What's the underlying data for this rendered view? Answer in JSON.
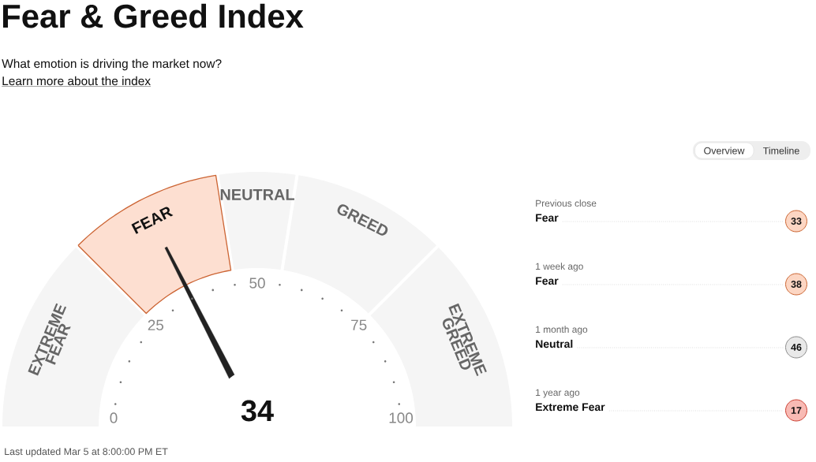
{
  "chart_data": [
    {
      "type": "donut",
      "title": "Fear & Greed Index",
      "subtitle": "What emotion is driving the market now?",
      "categories": [
        "EXTREME FEAR",
        "FEAR",
        "NEUTRAL",
        "GREED",
        "EXTREME GREED"
      ],
      "values": [
        25,
        20,
        10,
        20,
        25
      ],
      "colors": [
        "#f5f5f5",
        "#fddfd1",
        "#f5f5f5",
        "#f5f5f5",
        "#f5f5f5"
      ],
      "needle": "FEAR",
      "annotations": [
        "Learn more about the index",
        "Overview",
        "Timeline",
        "Last updated Mar 5 at 8:00:00 PM ET",
        "34",
        "0",
        "25",
        "50",
        "75",
        "100"
      ]
    },
    {
      "type": "other",
      "categories": [
        "Previous close",
        "1 week ago",
        "1 month ago",
        "1 year ago"
      ],
      "values": [
        33,
        38,
        46,
        17
      ],
      "colors": [
        "#fcd6c3",
        "#fcd6c3",
        "#e9e9e9",
        "#f8bab4"
      ],
      "data_labels": true,
      "annotations": [
        "Fear",
        "Fear",
        "Neutral",
        "Extreme Fear"
      ]
    }
  ]
}
